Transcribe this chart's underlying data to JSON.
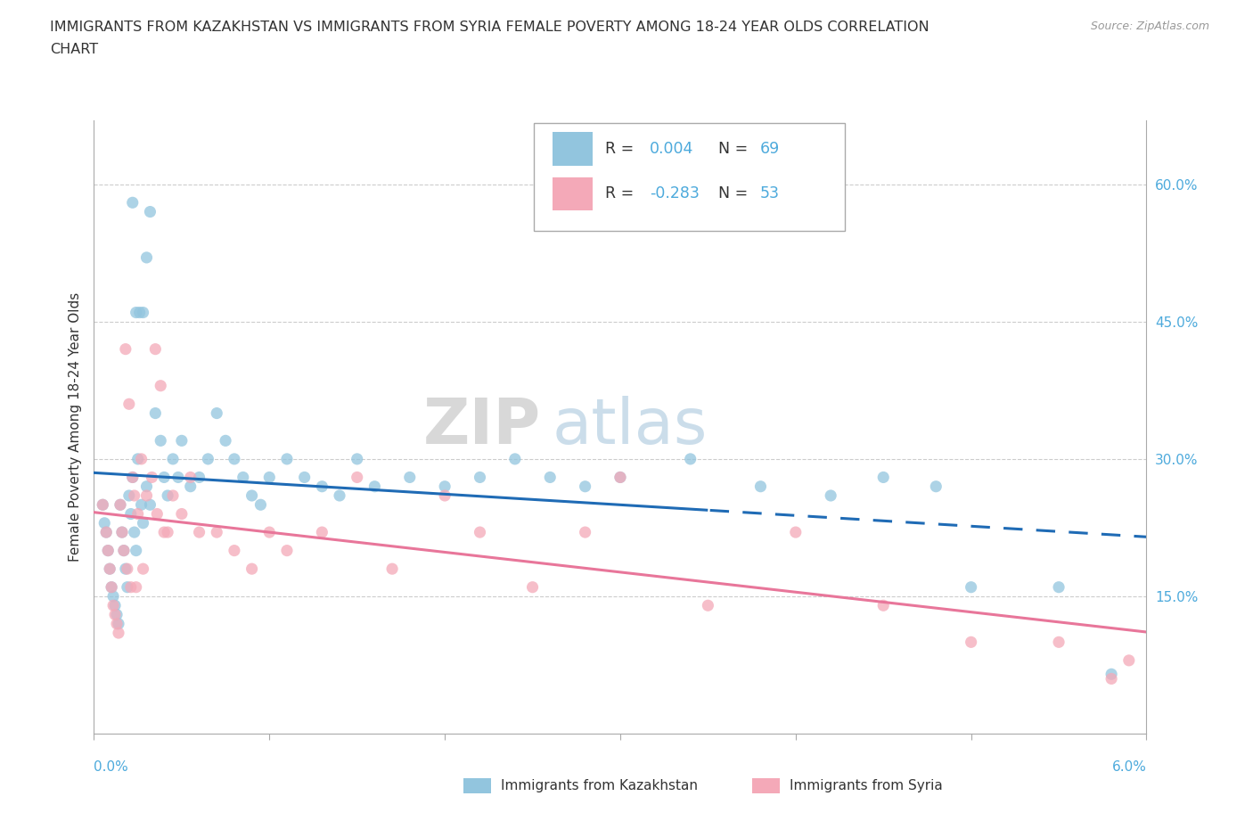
{
  "title_line1": "IMMIGRANTS FROM KAZAKHSTAN VS IMMIGRANTS FROM SYRIA FEMALE POVERTY AMONG 18-24 YEAR OLDS CORRELATION",
  "title_line2": "CHART",
  "source": "Source: ZipAtlas.com",
  "ylabel": "Female Poverty Among 18-24 Year Olds",
  "right_yticks": [
    "15.0%",
    "30.0%",
    "45.0%",
    "60.0%"
  ],
  "right_ytick_vals": [
    15.0,
    30.0,
    45.0,
    60.0
  ],
  "xlim": [
    0.0,
    6.0
  ],
  "ylim": [
    0.0,
    67.0
  ],
  "legend_kaz_R": "0.004",
  "legend_kaz_N": "69",
  "legend_syr_R": "-0.283",
  "legend_syr_N": "53",
  "color_kaz": "#92C5DE",
  "color_syr": "#F4A9B8",
  "color_trendline_kaz": "#1F6BB5",
  "color_trendline_syr": "#E8769A",
  "color_axis_label": "#4DAADC",
  "color_stat": "#4DAADC",
  "color_title": "#333333",
  "color_source": "#999999",
  "color_ylabel": "#333333",
  "color_grid": "#cccccc",
  "color_spine": "#aaaaaa",
  "watermark_zip_color": "#c8c8c8",
  "watermark_atlas_color": "#b0cce0",
  "trendline_split_x": 3.5,
  "kaz_x": [
    0.05,
    0.06,
    0.07,
    0.08,
    0.09,
    0.1,
    0.11,
    0.12,
    0.13,
    0.14,
    0.15,
    0.16,
    0.17,
    0.18,
    0.19,
    0.2,
    0.21,
    0.22,
    0.23,
    0.24,
    0.25,
    0.27,
    0.28,
    0.3,
    0.32,
    0.35,
    0.38,
    0.4,
    0.42,
    0.45,
    0.48,
    0.5,
    0.55,
    0.6,
    0.65,
    0.7,
    0.75,
    0.8,
    0.85,
    0.9,
    0.95,
    1.0,
    1.1,
    1.2,
    1.3,
    1.4,
    1.5,
    1.6,
    1.8,
    2.0,
    2.2,
    2.4,
    2.6,
    2.8,
    3.0,
    3.4,
    3.8,
    4.2,
    4.5,
    4.8,
    5.0,
    5.5,
    5.8,
    0.22,
    0.32,
    0.3,
    0.28,
    0.26,
    0.24
  ],
  "kaz_y": [
    25.0,
    23.0,
    22.0,
    20.0,
    18.0,
    16.0,
    15.0,
    14.0,
    13.0,
    12.0,
    25.0,
    22.0,
    20.0,
    18.0,
    16.0,
    26.0,
    24.0,
    28.0,
    22.0,
    20.0,
    30.0,
    25.0,
    23.0,
    27.0,
    25.0,
    35.0,
    32.0,
    28.0,
    26.0,
    30.0,
    28.0,
    32.0,
    27.0,
    28.0,
    30.0,
    35.0,
    32.0,
    30.0,
    28.0,
    26.0,
    25.0,
    28.0,
    30.0,
    28.0,
    27.0,
    26.0,
    30.0,
    27.0,
    28.0,
    27.0,
    28.0,
    30.0,
    28.0,
    27.0,
    28.0,
    30.0,
    27.0,
    26.0,
    28.0,
    27.0,
    16.0,
    16.0,
    6.5,
    58.0,
    57.0,
    52.0,
    46.0,
    46.0,
    46.0
  ],
  "syr_x": [
    0.05,
    0.07,
    0.08,
    0.09,
    0.1,
    0.11,
    0.12,
    0.13,
    0.14,
    0.15,
    0.16,
    0.17,
    0.18,
    0.19,
    0.2,
    0.21,
    0.22,
    0.23,
    0.25,
    0.27,
    0.3,
    0.33,
    0.36,
    0.4,
    0.45,
    0.5,
    0.55,
    0.6,
    0.7,
    0.8,
    0.9,
    1.0,
    1.1,
    1.3,
    1.5,
    1.7,
    2.0,
    2.2,
    2.5,
    2.8,
    3.0,
    3.5,
    4.0,
    4.5,
    5.0,
    5.5,
    5.8,
    5.9,
    0.38,
    0.35,
    0.42,
    0.28,
    0.24
  ],
  "syr_y": [
    25.0,
    22.0,
    20.0,
    18.0,
    16.0,
    14.0,
    13.0,
    12.0,
    11.0,
    25.0,
    22.0,
    20.0,
    42.0,
    18.0,
    36.0,
    16.0,
    28.0,
    26.0,
    24.0,
    30.0,
    26.0,
    28.0,
    24.0,
    22.0,
    26.0,
    24.0,
    28.0,
    22.0,
    22.0,
    20.0,
    18.0,
    22.0,
    20.0,
    22.0,
    28.0,
    18.0,
    26.0,
    22.0,
    16.0,
    22.0,
    28.0,
    14.0,
    22.0,
    14.0,
    10.0,
    10.0,
    6.0,
    8.0,
    38.0,
    42.0,
    22.0,
    18.0,
    16.0
  ]
}
